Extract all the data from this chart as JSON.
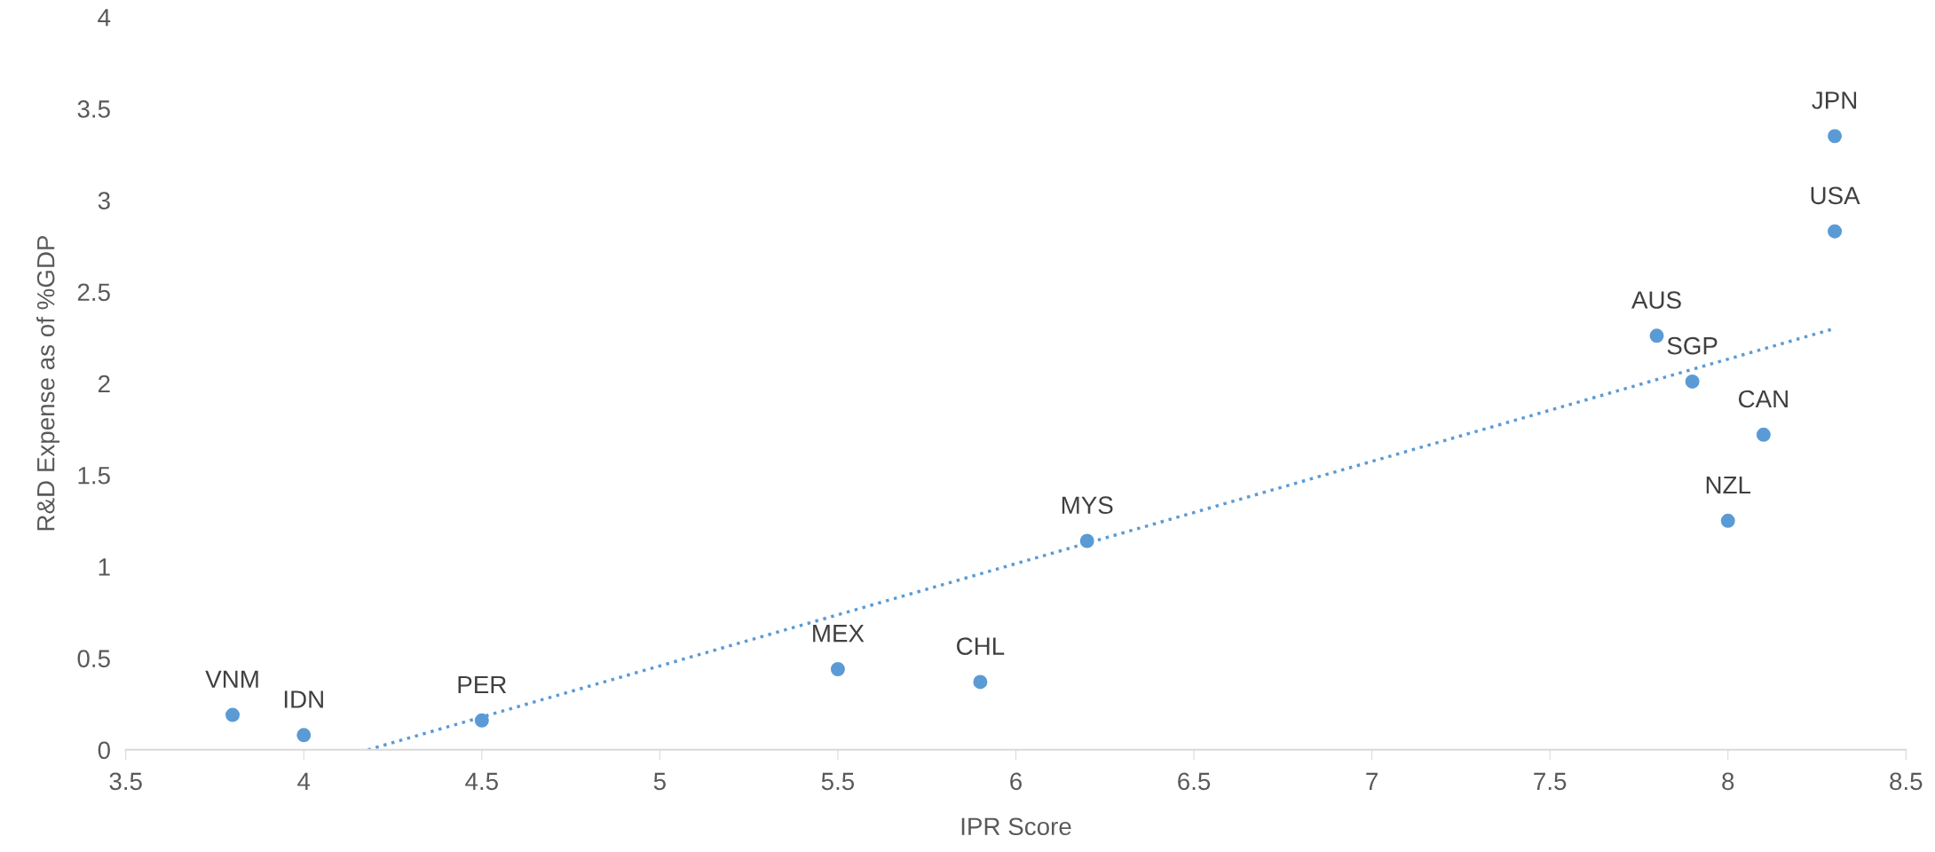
{
  "chart_data": {
    "type": "scatter",
    "xlabel": "IPR Score",
    "ylabel": "R&D Expense as of %GDP",
    "xlim": [
      3.5,
      8.5
    ],
    "xticks": [
      3.5,
      4,
      4.5,
      5,
      5.5,
      6,
      6.5,
      7,
      7.5,
      8,
      8.5
    ],
    "ylim": [
      0,
      4
    ],
    "yticks": [
      0,
      0.5,
      1,
      1.5,
      2,
      2.5,
      3,
      3.5,
      4
    ],
    "grid": false,
    "marker": "circle",
    "series": [
      {
        "color": "#5b9bd5",
        "x": [
          3.8,
          4.0,
          4.5,
          5.5,
          5.9,
          6.2,
          7.8,
          7.9,
          8.1,
          8.0,
          8.3,
          8.3
        ],
        "values": [
          0.19,
          0.08,
          0.16,
          0.44,
          0.37,
          1.14,
          2.26,
          2.01,
          1.72,
          1.25,
          3.35,
          2.83
        ]
      },
      {
        "type": "line",
        "color": "#5b9bd5",
        "line_style": "dotted",
        "marker": "none",
        "x": [
          4.18,
          8.3
        ],
        "values": [
          0,
          2.3
        ]
      }
    ],
    "annotations": [
      {
        "text": "VNM",
        "x": 3.8,
        "y": 0.19
      },
      {
        "text": "IDN",
        "x": 4.0,
        "y": 0.08
      },
      {
        "text": "PER",
        "x": 4.5,
        "y": 0.16
      },
      {
        "text": "MEX",
        "x": 5.5,
        "y": 0.44
      },
      {
        "text": "CHL",
        "x": 5.9,
        "y": 0.37
      },
      {
        "text": "MYS",
        "x": 6.2,
        "y": 1.14
      },
      {
        "text": "AUS",
        "x": 7.8,
        "y": 2.26
      },
      {
        "text": "SGP",
        "x": 7.9,
        "y": 2.01
      },
      {
        "text": "CAN",
        "x": 8.1,
        "y": 1.72
      },
      {
        "text": "NZL",
        "x": 8.0,
        "y": 1.25
      },
      {
        "text": "JPN",
        "x": 8.3,
        "y": 3.35
      },
      {
        "text": "USA",
        "x": 8.3,
        "y": 2.83
      }
    ]
  }
}
